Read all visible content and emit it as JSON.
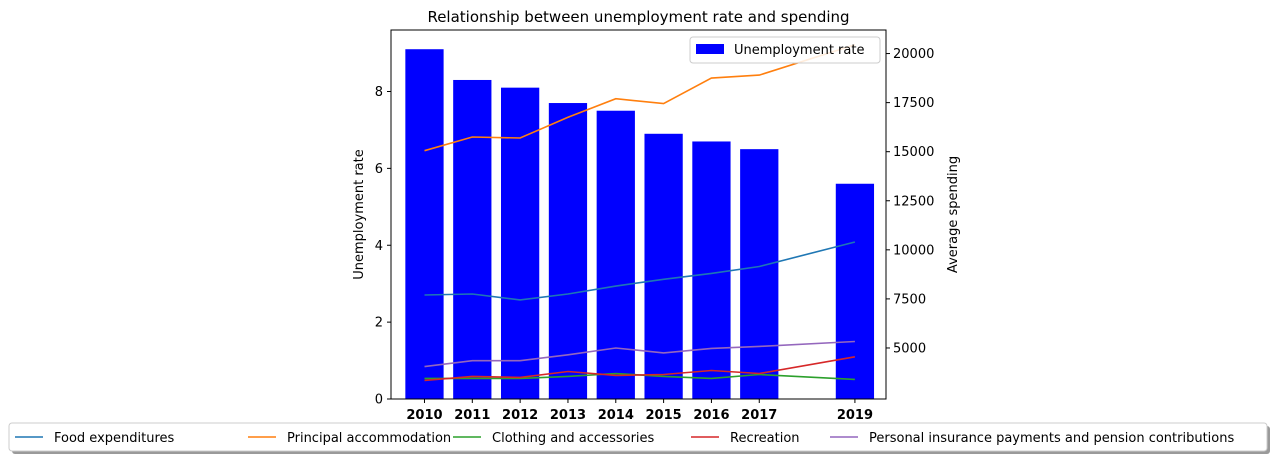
{
  "chart_data": {
    "type": "bar",
    "title": "Relationship between unemployment rate and spending",
    "xlabel": "",
    "ylabel": "Unemployment rate",
    "ylabel_right": "Average spending",
    "categories": [
      "2010",
      "2011",
      "2012",
      "2013",
      "2014",
      "2015",
      "2016",
      "2017",
      "2019"
    ],
    "x_values": [
      2010,
      2011,
      2012,
      2013,
      2014,
      2015,
      2016,
      2017,
      2019
    ],
    "ylim": [
      0,
      9.6
    ],
    "ylim_right": [
      2400,
      21200
    ],
    "yticks": [
      0,
      2,
      4,
      6,
      8
    ],
    "yticks_right": [
      5000,
      7500,
      10000,
      12500,
      15000,
      17500,
      20000
    ],
    "bars": {
      "name": "Unemployment rate",
      "color": "#0000ff",
      "values": [
        9.1,
        8.3,
        8.1,
        7.7,
        7.5,
        6.9,
        6.7,
        6.5,
        5.6
      ]
    },
    "bar_legend_position": "top-right",
    "lines": [
      {
        "name": "Food expenditures",
        "color": "#1f77b4",
        "values": [
          7700,
          7750,
          7450,
          7750,
          8150,
          8500,
          8800,
          9150,
          10400
        ]
      },
      {
        "name": "Principal accommodation",
        "color": "#ff7f0e",
        "values": [
          15050,
          15750,
          15700,
          16750,
          17700,
          17450,
          18750,
          18900,
          20450
        ]
      },
      {
        "name": "Clothing and accessories",
        "color": "#2ca02c",
        "values": [
          3450,
          3450,
          3450,
          3550,
          3700,
          3550,
          3450,
          3650,
          3400
        ]
      },
      {
        "name": "Recreation",
        "color": "#d62728",
        "values": [
          3350,
          3550,
          3500,
          3800,
          3600,
          3650,
          3850,
          3700,
          4550
        ]
      },
      {
        "name": "Personal insurance payments and pension contributions",
        "color": "#9467bd",
        "values": [
          4050,
          4350,
          4350,
          4650,
          5000,
          4750,
          4980,
          5080,
          5330
        ]
      }
    ],
    "lines_legend_position": "bottom"
  }
}
